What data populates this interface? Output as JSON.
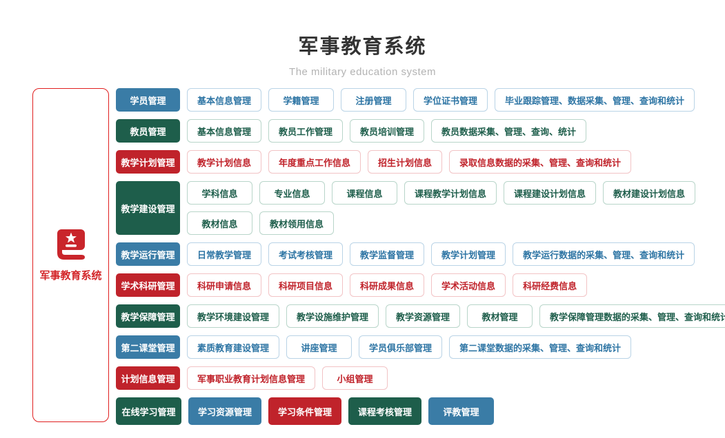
{
  "header": {
    "title": "军事教育系统",
    "subtitle": "The military education system"
  },
  "sidebar": {
    "label": "军事教育系统",
    "icon": "book-star-icon",
    "border_color": "#e01f1f",
    "icon_color": "#c9252b",
    "text_color": "#d32629"
  },
  "colors": {
    "solid_blue": "#3a7ca6",
    "solid_green": "#1e5e4b",
    "solid_red": "#c0232b",
    "outline_blue_border": "#b9d3e6",
    "outline_blue_text": "#2e75a4",
    "outline_green_border": "#b8d5c9",
    "outline_green_text": "#1e5e4b",
    "outline_red_border": "#f2c3c5",
    "outline_red_text": "#c0232b"
  },
  "rows": [
    {
      "category": {
        "label": "学员管理",
        "variant": "blue",
        "tall": false
      },
      "item_rows": [
        [
          {
            "label": "基本信息管理",
            "variant": "blue",
            "fill": "outline"
          },
          {
            "label": "学籍管理",
            "variant": "blue",
            "fill": "outline"
          },
          {
            "label": "注册管理",
            "variant": "blue",
            "fill": "outline"
          },
          {
            "label": "学位证书管理",
            "variant": "blue",
            "fill": "outline"
          },
          {
            "label": "毕业跟踪管理、数据采集、管理、查询和统计",
            "variant": "blue",
            "fill": "outline"
          }
        ]
      ]
    },
    {
      "category": {
        "label": "教员管理",
        "variant": "green",
        "tall": false
      },
      "item_rows": [
        [
          {
            "label": "基本信息管理",
            "variant": "green",
            "fill": "outline"
          },
          {
            "label": "教员工作管理",
            "variant": "green",
            "fill": "outline"
          },
          {
            "label": "教员培训管理",
            "variant": "green",
            "fill": "outline"
          },
          {
            "label": "教员数据采集、管理、查询、统计",
            "variant": "green",
            "fill": "outline"
          }
        ]
      ]
    },
    {
      "category": {
        "label": "教学计划管理",
        "variant": "red",
        "tall": false
      },
      "item_rows": [
        [
          {
            "label": "教学计划信息",
            "variant": "red",
            "fill": "outline"
          },
          {
            "label": "年度重点工作信息",
            "variant": "red",
            "fill": "outline"
          },
          {
            "label": "招生计划信息",
            "variant": "red",
            "fill": "outline"
          },
          {
            "label": "录取信息数据的采集、管理、查询和统计",
            "variant": "red",
            "fill": "outline"
          }
        ]
      ]
    },
    {
      "category": {
        "label": "教学建设管理",
        "variant": "green",
        "tall": true
      },
      "item_rows": [
        [
          {
            "label": "学科信息",
            "variant": "green",
            "fill": "outline"
          },
          {
            "label": "专业信息",
            "variant": "green",
            "fill": "outline"
          },
          {
            "label": "课程信息",
            "variant": "green",
            "fill": "outline"
          },
          {
            "label": "课程教学计划信息",
            "variant": "green",
            "fill": "outline"
          },
          {
            "label": "课程建设计划信息",
            "variant": "green",
            "fill": "outline"
          },
          {
            "label": "教材建设计划信息",
            "variant": "green",
            "fill": "outline"
          }
        ],
        [
          {
            "label": "教材信息",
            "variant": "green",
            "fill": "outline"
          },
          {
            "label": "教材领用信息",
            "variant": "green",
            "fill": "outline"
          }
        ]
      ]
    },
    {
      "category": {
        "label": "教学运行管理",
        "variant": "blue",
        "tall": false
      },
      "item_rows": [
        [
          {
            "label": "日常教学管理",
            "variant": "blue",
            "fill": "outline"
          },
          {
            "label": "考试考核管理",
            "variant": "blue",
            "fill": "outline"
          },
          {
            "label": "教学监督管理",
            "variant": "blue",
            "fill": "outline"
          },
          {
            "label": "教学计划管理",
            "variant": "blue",
            "fill": "outline"
          },
          {
            "label": "教学运行数据的采集、管理、查询和统计",
            "variant": "blue",
            "fill": "outline"
          }
        ]
      ]
    },
    {
      "category": {
        "label": "学术科研管理",
        "variant": "red",
        "tall": false
      },
      "item_rows": [
        [
          {
            "label": "科研申请信息",
            "variant": "red",
            "fill": "outline"
          },
          {
            "label": "科研项目信息",
            "variant": "red",
            "fill": "outline"
          },
          {
            "label": "科研成果信息",
            "variant": "red",
            "fill": "outline"
          },
          {
            "label": "学术活动信息",
            "variant": "red",
            "fill": "outline"
          },
          {
            "label": "科研经费信息",
            "variant": "red",
            "fill": "outline"
          }
        ]
      ]
    },
    {
      "category": {
        "label": "教学保障管理",
        "variant": "green",
        "tall": false
      },
      "item_rows": [
        [
          {
            "label": "教学环境建设管理",
            "variant": "green",
            "fill": "outline"
          },
          {
            "label": "教学设施维护管理",
            "variant": "green",
            "fill": "outline"
          },
          {
            "label": "教学资源管理",
            "variant": "green",
            "fill": "outline"
          },
          {
            "label": "教材管理",
            "variant": "green",
            "fill": "outline"
          },
          {
            "label": "教学保障管理数据的采集、管理、查询和统计",
            "variant": "green",
            "fill": "outline"
          }
        ]
      ]
    },
    {
      "category": {
        "label": "第二课堂管理",
        "variant": "blue",
        "tall": false
      },
      "item_rows": [
        [
          {
            "label": "素质教育建设管理",
            "variant": "blue",
            "fill": "outline"
          },
          {
            "label": "讲座管理",
            "variant": "blue",
            "fill": "outline"
          },
          {
            "label": "学员俱乐部管理",
            "variant": "blue",
            "fill": "outline"
          },
          {
            "label": "第二课堂数据的采集、管理、查询和统计",
            "variant": "blue",
            "fill": "outline"
          }
        ]
      ]
    },
    {
      "category": {
        "label": "计划信息管理",
        "variant": "red",
        "tall": false
      },
      "item_rows": [
        [
          {
            "label": "军事职业教育计划信息管理",
            "variant": "red",
            "fill": "outline"
          },
          {
            "label": "小组管理",
            "variant": "red",
            "fill": "outline"
          }
        ]
      ]
    },
    {
      "category": {
        "label": "在线学习管理",
        "variant": "green",
        "tall": false
      },
      "item_rows": [
        [
          {
            "label": "学习资源管理",
            "variant": "blue",
            "fill": "solid"
          },
          {
            "label": "学习条件管理",
            "variant": "red",
            "fill": "solid"
          },
          {
            "label": "课程考核管理",
            "variant": "green",
            "fill": "solid"
          },
          {
            "label": "评教管理",
            "variant": "blue",
            "fill": "solid"
          }
        ]
      ]
    }
  ]
}
